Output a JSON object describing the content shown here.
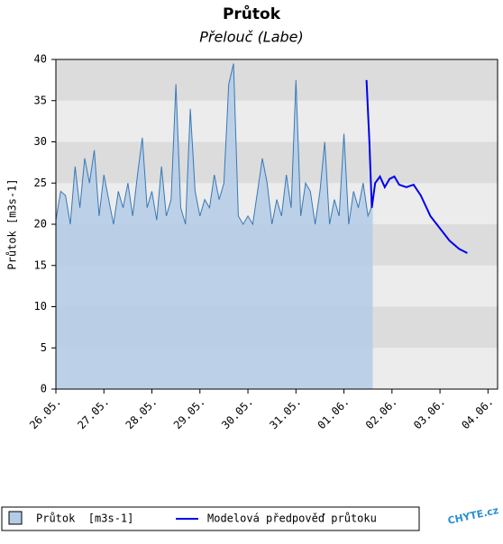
{
  "chart_data": {
    "type": "area-line",
    "title": "Průtok",
    "subtitle": "Přelouč (Labe)",
    "ylabel": "Průtok [m3s-1]",
    "xlim": [
      0,
      9.2
    ],
    "ylim": [
      0,
      40
    ],
    "yticks": [
      0,
      5,
      10,
      15,
      20,
      25,
      30,
      35,
      40
    ],
    "xticks": [
      {
        "value": 0,
        "label": "26.05."
      },
      {
        "value": 1,
        "label": "27.05."
      },
      {
        "value": 2,
        "label": "28.05."
      },
      {
        "value": 3,
        "label": "29.05."
      },
      {
        "value": 4,
        "label": "30.05."
      },
      {
        "value": 5,
        "label": "31.05."
      },
      {
        "value": 6,
        "label": "01.06."
      },
      {
        "value": 7,
        "label": "02.06."
      },
      {
        "value": 8,
        "label": "03.06."
      },
      {
        "value": 9,
        "label": "04.06."
      }
    ],
    "bands": true,
    "series": [
      {
        "name": "Průtok  [m3s-1]",
        "kind": "area",
        "color": "#3a78b5",
        "fill": "#b4cce6",
        "x": [
          0,
          0.1,
          0.2,
          0.3,
          0.4,
          0.5,
          0.6,
          0.7,
          0.8,
          0.9,
          1,
          1.1,
          1.2,
          1.3,
          1.4,
          1.5,
          1.6,
          1.7,
          1.8,
          1.9,
          2,
          2.1,
          2.2,
          2.3,
          2.4,
          2.5,
          2.6,
          2.7,
          2.8,
          2.9,
          3,
          3.1,
          3.2,
          3.3,
          3.4,
          3.5,
          3.6,
          3.7,
          3.8,
          3.9,
          4,
          4.1,
          4.2,
          4.3,
          4.4,
          4.5,
          4.6,
          4.7,
          4.8,
          4.9,
          5,
          5.1,
          5.2,
          5.3,
          5.4,
          5.5,
          5.6,
          5.7,
          5.8,
          5.9,
          6,
          6.1,
          6.2,
          6.3,
          6.4,
          6.5,
          6.6
        ],
        "values": [
          20.5,
          24,
          23.5,
          20,
          27,
          22,
          28,
          25,
          29,
          21,
          26,
          23,
          20,
          24,
          22,
          25,
          21,
          26,
          30.5,
          22,
          24,
          20.5,
          27,
          21,
          23,
          37,
          22,
          20,
          34,
          24,
          21,
          23,
          22,
          26,
          23,
          25,
          37,
          39.5,
          21,
          20,
          21,
          20,
          24,
          28,
          25,
          20,
          23,
          21,
          26,
          22,
          37.5,
          21,
          25,
          24,
          20,
          24,
          30,
          20,
          23,
          21,
          31,
          20,
          24,
          22,
          25,
          21,
          22.5
        ]
      },
      {
        "name": "Modelová předpověď průtoku",
        "kind": "line",
        "color": "#0000ee",
        "x": [
          6.47,
          6.53,
          6.58,
          6.65,
          6.75,
          6.85,
          6.95,
          7.05,
          7.15,
          7.3,
          7.45,
          7.6,
          7.8,
          8,
          8.2,
          8.4,
          8.57
        ],
        "values": [
          37.5,
          30,
          22,
          25,
          25.8,
          24.5,
          25.5,
          25.8,
          24.8,
          24.5,
          24.8,
          23.5,
          21,
          19.5,
          18,
          17,
          16.5
        ]
      }
    ],
    "logo": "CHYTE.cz"
  }
}
